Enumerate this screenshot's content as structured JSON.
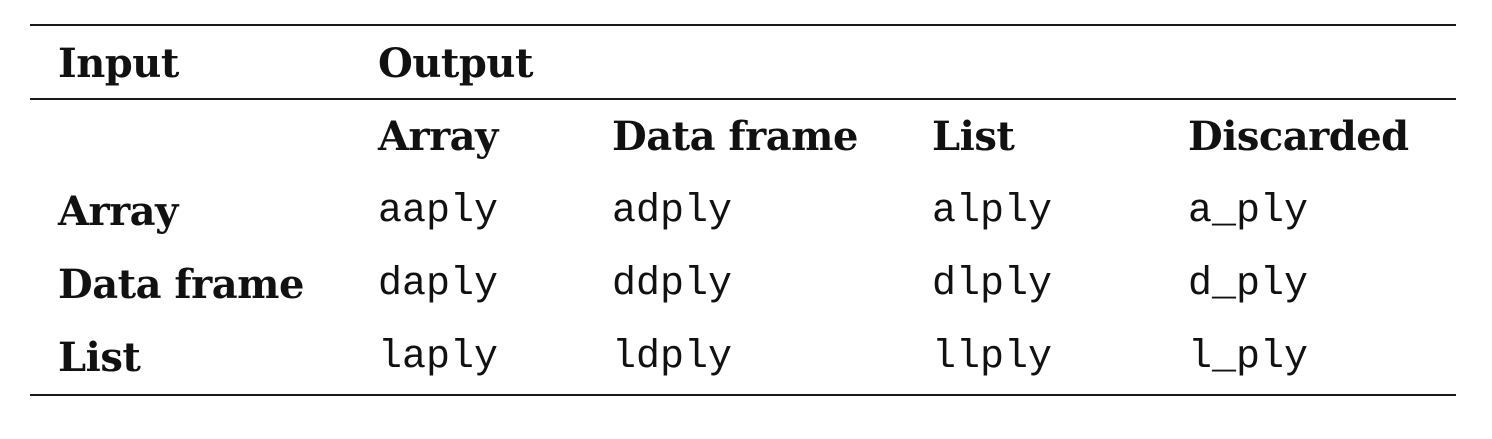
{
  "table": {
    "header": {
      "input_label": "Input",
      "output_label": "Output"
    },
    "output_columns": [
      "Array",
      "Data frame",
      "List",
      "Discarded"
    ],
    "rows": [
      {
        "label": "Array",
        "cells": [
          "aaply",
          "adply",
          "alply",
          "a_ply"
        ]
      },
      {
        "label": "Data frame",
        "cells": [
          "daply",
          "ddply",
          "dlply",
          "d_ply"
        ]
      },
      {
        "label": "List",
        "cells": [
          "laply",
          "ldply",
          "llply",
          "l_ply"
        ]
      }
    ]
  }
}
